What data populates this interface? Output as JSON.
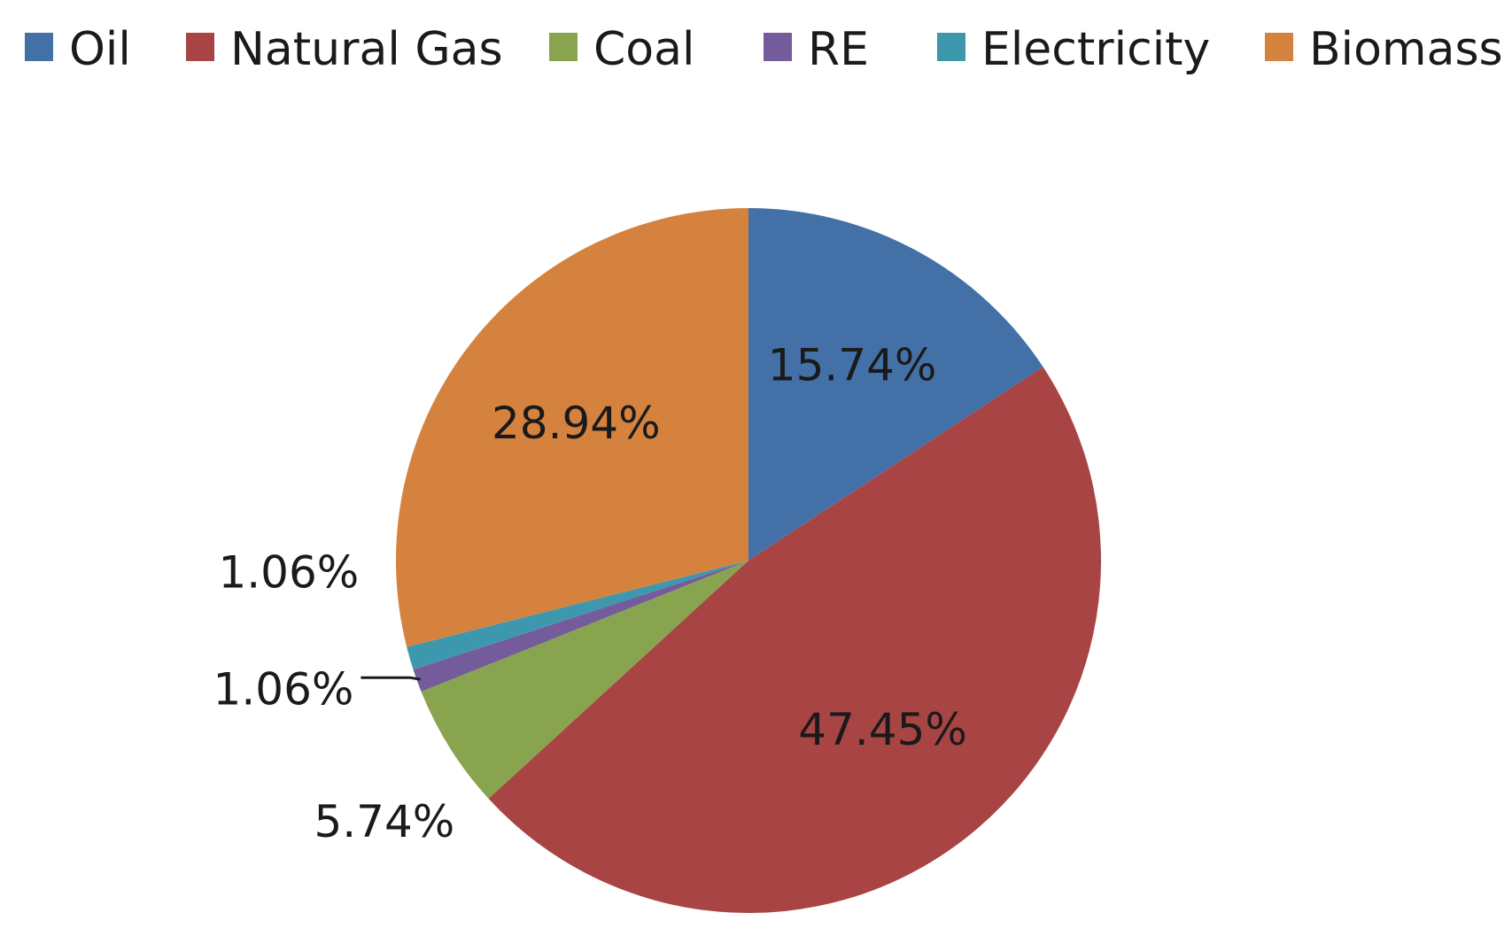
{
  "chart_data": {
    "type": "pie",
    "title": "",
    "legend_position": "top",
    "series": [
      {
        "name": "Oil",
        "value": 15.74,
        "label": "15.74%",
        "color": "#4470A8"
      },
      {
        "name": "Natural Gas",
        "value": 47.45,
        "label": "47.45%",
        "color": "#A84444"
      },
      {
        "name": "Coal",
        "value": 5.74,
        "label": "5.74%",
        "color": "#88A44E"
      },
      {
        "name": "RE",
        "value": 1.06,
        "label": "1.06%",
        "color": "#745C9C"
      },
      {
        "name": "Electricity",
        "value": 1.06,
        "label": "1.06%",
        "color": "#3D98AE"
      },
      {
        "name": "Biomass",
        "value": 28.94,
        "label": "28.94%",
        "color": "#D5823E"
      }
    ]
  }
}
